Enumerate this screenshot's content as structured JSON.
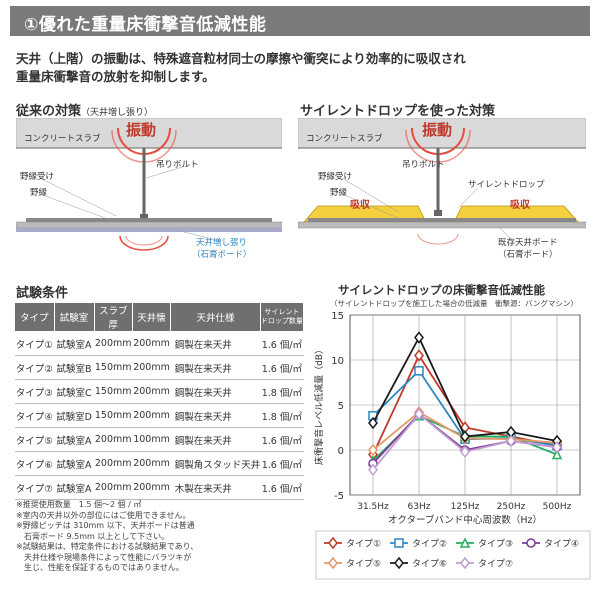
{
  "header": {
    "title": "①優れた重量床衝撃音低減性能"
  },
  "intro": {
    "line1": "天井（上階）の振動は、特殊遮音粒材同士の摩擦や衝突により効率的に吸収され",
    "line2": "重量床衝撃音の放射を抑制します。"
  },
  "left_diagram": {
    "title": "従来の対策",
    "title_note": "（天井増し張り）",
    "slab": "コンクリートスラブ",
    "vibration": "振動",
    "bolt": "吊りボルト",
    "joist_receiver": "野縁受け",
    "joist": "野縁",
    "board": "天井増し張り",
    "board_sub": "（石膏ボード）"
  },
  "right_diagram": {
    "title": "サイレントドロップを使った対策",
    "slab": "コンクリートスラブ",
    "vibration": "振動",
    "bolt": "吊りボルト",
    "joist_receiver": "野縁受け",
    "joist": "野縁",
    "product": "サイレントドロップ",
    "absorb_left": "吸収",
    "absorb_right": "吸収",
    "board": "既存天井ボード",
    "board_sub": "（石膏ボード）"
  },
  "test_conditions": {
    "title": "試験条件",
    "headers": [
      "タイプ",
      "試験室",
      "スラブ厚",
      "天井懐",
      "天井仕様",
      "サイレント\nドロップ数量"
    ],
    "rows": [
      [
        "タイプ①",
        "試験室A",
        "200mm",
        "200mm",
        "鋼製在来天井",
        "1.6 個/㎡"
      ],
      [
        "タイプ②",
        "試験室B",
        "150mm",
        "200mm",
        "鋼製在来天井",
        "1.6 個/㎡"
      ],
      [
        "タイプ③",
        "試験室C",
        "150mm",
        "200mm",
        "鋼製在来天井",
        "1.8 個/㎡"
      ],
      [
        "タイプ④",
        "試験室D",
        "150mm",
        "200mm",
        "鋼製在来天井",
        "1.8 個/㎡"
      ],
      [
        "タイプ⑤",
        "試験室A",
        "200mm",
        "100mm",
        "鋼製在来天井",
        "1.6 個/㎡"
      ],
      [
        "タイプ⑥",
        "試験室A",
        "200mm",
        "200mm",
        "鋼製角スタッド天井",
        "1.6 個/㎡"
      ],
      [
        "タイプ⑦",
        "試験室A",
        "200mm",
        "200mm",
        "木製在来天井",
        "1.6 個/㎡"
      ]
    ],
    "notes": [
      "※推奨使用数量　1.5 個～2 個 / ㎡",
      "※室内の天井以外の部位にはご使用できません。",
      "※野縁ピッチは 310mm 以下、天井ボードは普通",
      "　石膏ボード 9.5mm 以上として下さい。",
      "※試験結果は、特定条件における試験結果であり、",
      "　天井仕様や現場条件によって性能にバラツキが",
      "　生じ、性能を保証するものではありません。"
    ]
  },
  "chart_data": {
    "type": "line",
    "title": "サイレントドロップの床衝撃音低減性能",
    "subtitle": "（サイレントドロップを施工した場合の低減量　衝撃源：バングマシン）",
    "xlabel": "オクターブバンド中心周波数（Hz）",
    "ylabel": "床衝撃音レベル低減量（dB）",
    "categories": [
      "31.5Hz",
      "63Hz",
      "125Hz",
      "250Hz",
      "500Hz"
    ],
    "ylim": [
      -5,
      15
    ],
    "yticks": [
      -5,
      0,
      5,
      10,
      15
    ],
    "grid": true,
    "legend_position": "bottom",
    "series": [
      {
        "name": "タイプ①",
        "color": "#c0392b",
        "marker": "diamond",
        "values": [
          -0.5,
          10.5,
          2.5,
          1.5,
          0.5
        ]
      },
      {
        "name": "タイプ②",
        "color": "#2e86c1",
        "marker": "square",
        "values": [
          3.8,
          8.8,
          1.2,
          1.3,
          0.5
        ]
      },
      {
        "name": "タイプ③",
        "color": "#27ae60",
        "marker": "triangle",
        "values": [
          -1.2,
          3.8,
          1.5,
          1.5,
          -0.5
        ]
      },
      {
        "name": "タイプ④",
        "color": "#7d3c98",
        "marker": "circle",
        "values": [
          -1.5,
          4.0,
          0.0,
          1.0,
          0.3
        ]
      },
      {
        "name": "タイプ⑤",
        "color": "#e59866",
        "marker": "diamond",
        "values": [
          0.0,
          4.2,
          1.3,
          1.2,
          0.8
        ]
      },
      {
        "name": "タイプ⑥",
        "color": "#1a1a1a",
        "marker": "diamond",
        "values": [
          3.0,
          12.5,
          1.5,
          2.0,
          1.0
        ]
      },
      {
        "name": "タイプ⑦",
        "color": "#c39bd3",
        "marker": "diamond",
        "values": [
          -2.2,
          4.0,
          -0.2,
          1.0,
          0.3
        ]
      }
    ]
  }
}
